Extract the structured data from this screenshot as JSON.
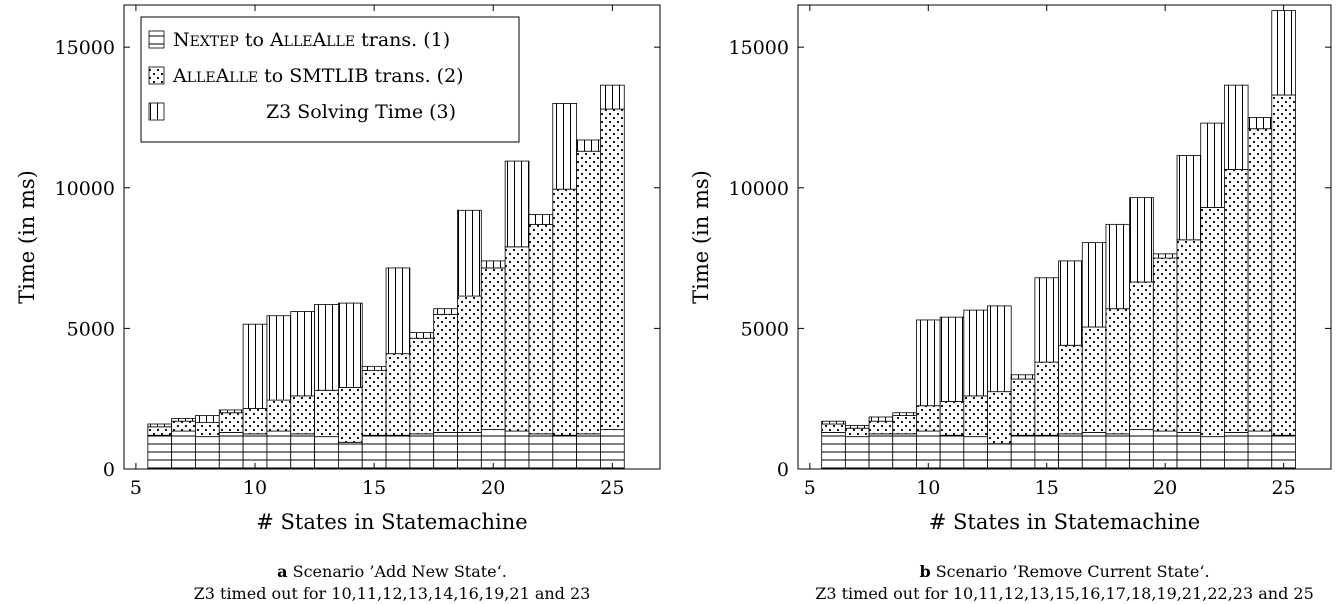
{
  "chart_data": [
    {
      "type": "bar",
      "stacked": true,
      "xlabel": "# States in Statemachine",
      "ylabel": "Time (in ms)",
      "xlim": [
        4.5,
        27
      ],
      "ylim": [
        0,
        16500
      ],
      "xticks": [
        5,
        10,
        15,
        20,
        25
      ],
      "yticks": [
        0,
        5000,
        10000,
        15000
      ],
      "xticklabels": [
        "5",
        "10",
        "15",
        "20",
        "25"
      ],
      "yticklabels": [
        "0",
        "5000",
        "10000",
        "15000"
      ],
      "legend": {
        "position": "top-left",
        "entries": [
          {
            "prefix": "N",
            "smallcaps": "EXTEP",
            "mid": " to A",
            "smallcaps2": "LLE",
            "mid2": "A",
            "smallcaps3": "LLE",
            "suffix": " trans. (1)",
            "pattern": "horizontal-lines"
          },
          {
            "prefix": "A",
            "smallcaps": "LLE",
            "mid": "A",
            "smallcaps2": "LLE",
            "mid2": "",
            "smallcaps3": "",
            "suffix": " to SMTLIB trans. (2)",
            "pattern": "dots"
          },
          {
            "prefix": "",
            "smallcaps": "",
            "mid": "",
            "smallcaps2": "",
            "mid2": "",
            "smallcaps3": "",
            "suffix": "Z3 Solving Time (3)",
            "pattern": "vertical-lines"
          }
        ]
      },
      "x": [
        6,
        7,
        8,
        9,
        10,
        11,
        12,
        13,
        14,
        15,
        16,
        17,
        18,
        19,
        20,
        21,
        22,
        23,
        24,
        25
      ],
      "series": [
        {
          "name": "Nextep to AlleAlle trans. (1)",
          "pattern": "horizontal-lines",
          "values": [
            1200,
            1350,
            1150,
            1300,
            1250,
            1350,
            1250,
            1150,
            950,
            1200,
            1200,
            1250,
            1300,
            1300,
            1400,
            1350,
            1250,
            1200,
            1250,
            1400
          ]
        },
        {
          "name": "AlleAlle to SMTLIB trans. (2)",
          "pattern": "dots",
          "values": [
            300,
            350,
            500,
            700,
            900,
            1100,
            1350,
            1650,
            1950,
            2300,
            2900,
            3400,
            4200,
            4850,
            5750,
            6550,
            7450,
            8750,
            10050,
            11400
          ]
        },
        {
          "name": "Z3 Solving Time (3)",
          "pattern": "vertical-lines",
          "values": [
            100,
            100,
            250,
            100,
            3000,
            3000,
            3000,
            3050,
            3000,
            150,
            3050,
            200,
            200,
            3050,
            250,
            3050,
            350,
            3050,
            400,
            850
          ]
        }
      ],
      "caption": {
        "bold": "a",
        "line1": " Scenario ’Add New State‘.",
        "line2": "Z3 timed out for 10,11,12,13,14,16,19,21 and 23"
      }
    },
    {
      "type": "bar",
      "stacked": true,
      "xlabel": "# States in Statemachine",
      "ylabel": "Time (in ms)",
      "xlim": [
        4.5,
        27
      ],
      "ylim": [
        0,
        16500
      ],
      "xticks": [
        5,
        10,
        15,
        20,
        25
      ],
      "yticks": [
        0,
        5000,
        10000,
        15000
      ],
      "xticklabels": [
        "5",
        "10",
        "15",
        "20",
        "25"
      ],
      "yticklabels": [
        "0",
        "5000",
        "10000",
        "15000"
      ],
      "x": [
        6,
        7,
        8,
        9,
        10,
        11,
        12,
        13,
        14,
        15,
        16,
        17,
        18,
        19,
        20,
        21,
        22,
        23,
        24,
        25
      ],
      "series": [
        {
          "name": "Nextep to AlleAlle trans. (1)",
          "pattern": "horizontal-lines",
          "values": [
            1300,
            1150,
            1250,
            1250,
            1350,
            1200,
            1150,
            900,
            1200,
            1200,
            1250,
            1300,
            1250,
            1400,
            1350,
            1300,
            1150,
            1300,
            1350,
            1200
          ]
        },
        {
          "name": "AlleAlle to SMTLIB trans. (2)",
          "pattern": "dots",
          "values": [
            300,
            300,
            450,
            650,
            900,
            1200,
            1450,
            1850,
            2000,
            2600,
            3150,
            3750,
            4450,
            5250,
            6150,
            6850,
            8150,
            9350,
            10750,
            12100
          ]
        },
        {
          "name": "Z3 Solving Time (3)",
          "pattern": "vertical-lines",
          "values": [
            100,
            100,
            150,
            100,
            3050,
            3000,
            3050,
            3050,
            150,
            3000,
            3000,
            3000,
            3000,
            3000,
            150,
            3000,
            3000,
            3000,
            400,
            3000
          ]
        }
      ],
      "caption": {
        "bold": "b",
        "line1": " Scenario ’Remove Current State‘.",
        "line2": "Z3 timed out for 10,11,12,13,15,16,17,18,19,21,22,23 and 25"
      }
    }
  ]
}
